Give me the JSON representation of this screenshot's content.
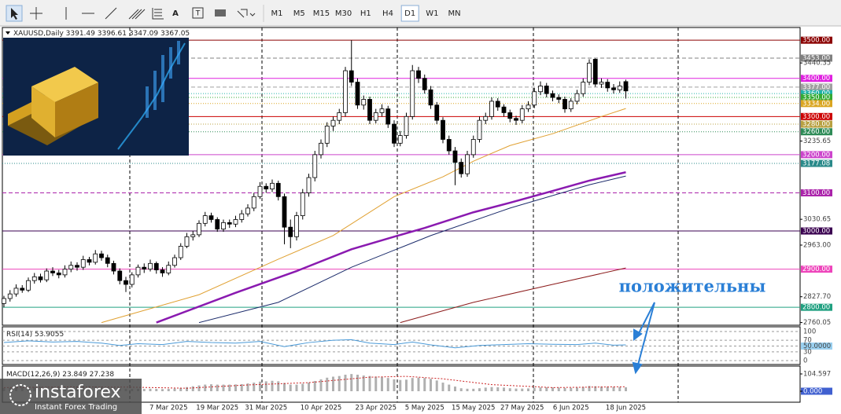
{
  "toolbar": {
    "text_tool": "A",
    "timeframes": [
      "M1",
      "M5",
      "M15",
      "M30",
      "H1",
      "H4",
      "D1",
      "W1",
      "MN"
    ],
    "active": "D1"
  },
  "logo": {
    "name": "instaforex",
    "tagline": "Instant Forex Trading"
  },
  "chart_data": [
    {
      "type": "candlestick",
      "title": "XAUUSD,Daily",
      "up_color": "#ffffff",
      "down_color": "#000000",
      "categories": [
        null,
        null,
        null,
        null,
        null,
        null,
        null,
        null,
        null,
        null,
        null,
        null,
        null,
        null,
        null,
        null,
        null,
        null,
        null,
        null,
        null,
        null,
        null,
        null,
        null,
        null,
        null,
        "7 Mar 2025",
        null,
        null,
        null,
        null,
        null,
        null,
        null,
        "19 Mar 2025",
        null,
        null,
        null,
        null,
        null,
        null,
        null,
        "31 Mar 2025",
        null,
        null,
        null,
        null,
        null,
        null,
        null,
        null,
        "10 Apr 2025",
        null,
        null,
        null,
        null,
        null,
        null,
        null,
        null,
        "23 Apr 2025",
        null,
        null,
        null,
        null,
        null,
        null,
        null,
        "5 May 2025",
        null,
        null,
        null,
        null,
        null,
        null,
        null,
        "15 May 2025",
        null,
        null,
        null,
        null,
        null,
        null,
        null,
        "27 May 2025",
        null,
        null,
        null,
        null,
        null,
        null,
        null,
        "6 Jun 2025",
        null,
        null,
        null,
        null,
        null,
        null,
        null,
        null,
        "18 Jun 2025"
      ],
      "ohlc": [
        [
          2810,
          2830,
          2800,
          2823
        ],
        [
          2823,
          2845,
          2815,
          2835
        ],
        [
          2835,
          2860,
          2828,
          2850
        ],
        [
          2850,
          2858,
          2838,
          2845
        ],
        [
          2845,
          2878,
          2840,
          2870
        ],
        [
          2870,
          2890,
          2862,
          2880
        ],
        [
          2880,
          2888,
          2865,
          2872
        ],
        [
          2872,
          2902,
          2866,
          2895
        ],
        [
          2895,
          2905,
          2882,
          2890
        ],
        [
          2890,
          2898,
          2876,
          2885
        ],
        [
          2885,
          2910,
          2878,
          2900
        ],
        [
          2900,
          2920,
          2892,
          2910
        ],
        [
          2910,
          2918,
          2896,
          2905
        ],
        [
          2905,
          2935,
          2898,
          2925
        ],
        [
          2925,
          2932,
          2910,
          2918
        ],
        [
          2918,
          2950,
          2912,
          2940
        ],
        [
          2940,
          2948,
          2922,
          2930
        ],
        [
          2930,
          2938,
          2905,
          2915
        ],
        [
          2915,
          2922,
          2886,
          2895
        ],
        [
          2895,
          2902,
          2860,
          2870
        ],
        [
          2870,
          2880,
          2840,
          2860
        ],
        [
          2860,
          2892,
          2852,
          2885
        ],
        [
          2885,
          2912,
          2878,
          2905
        ],
        [
          2905,
          2915,
          2890,
          2900
        ],
        [
          2900,
          2925,
          2894,
          2915
        ],
        [
          2915,
          2920,
          2888,
          2898
        ],
        [
          2898,
          2905,
          2880,
          2890
        ],
        [
          2890,
          2920,
          2884,
          2910
        ],
        [
          2910,
          2938,
          2904,
          2930
        ],
        [
          2930,
          2968,
          2924,
          2960
        ],
        [
          2960,
          2995,
          2955,
          2985
        ],
        [
          2985,
          3000,
          2975,
          2990
        ],
        [
          2990,
          3028,
          2984,
          3020
        ],
        [
          3020,
          3050,
          3012,
          3040
        ],
        [
          3040,
          3048,
          3022,
          3030
        ],
        [
          3030,
          3036,
          2998,
          3005
        ],
        [
          3005,
          3030,
          2998,
          3022
        ],
        [
          3022,
          3030,
          3008,
          3018
        ],
        [
          3018,
          3040,
          3010,
          3030
        ],
        [
          3030,
          3055,
          3022,
          3045
        ],
        [
          3045,
          3070,
          3038,
          3060
        ],
        [
          3060,
          3100,
          3052,
          3090
        ],
        [
          3090,
          3128,
          3084,
          3117
        ],
        [
          3117,
          3125,
          3100,
          3110
        ],
        [
          3110,
          3135,
          3102,
          3125
        ],
        [
          3125,
          3132,
          3080,
          3090
        ],
        [
          3090,
          3098,
          2965,
          3010
        ],
        [
          3010,
          3030,
          2955,
          2985
        ],
        [
          2985,
          3050,
          2975,
          3040
        ],
        [
          3040,
          3110,
          3030,
          3100
        ],
        [
          3100,
          3150,
          3090,
          3140
        ],
        [
          3140,
          3210,
          3130,
          3200
        ],
        [
          3200,
          3240,
          3190,
          3230
        ],
        [
          3230,
          3285,
          3220,
          3275
        ],
        [
          3275,
          3300,
          3262,
          3290
        ],
        [
          3290,
          3320,
          3280,
          3310
        ],
        [
          3310,
          3430,
          3300,
          3420
        ],
        [
          3420,
          3500,
          3380,
          3390
        ],
        [
          3390,
          3400,
          3320,
          3330
        ],
        [
          3330,
          3355,
          3318,
          3345
        ],
        [
          3345,
          3352,
          3280,
          3290
        ],
        [
          3290,
          3320,
          3282,
          3310
        ],
        [
          3310,
          3332,
          3300,
          3320
        ],
        [
          3320,
          3328,
          3270,
          3280
        ],
        [
          3280,
          3290,
          3220,
          3230
        ],
        [
          3230,
          3262,
          3222,
          3250
        ],
        [
          3250,
          3310,
          3242,
          3300
        ],
        [
          3300,
          3435,
          3292,
          3420
        ],
        [
          3420,
          3430,
          3388,
          3400
        ],
        [
          3400,
          3410,
          3360,
          3370
        ],
        [
          3370,
          3380,
          3320,
          3330
        ],
        [
          3330,
          3338,
          3280,
          3290
        ],
        [
          3290,
          3298,
          3230,
          3240
        ],
        [
          3240,
          3250,
          3200,
          3210
        ],
        [
          3210,
          3220,
          3120,
          3180
        ],
        [
          3180,
          3190,
          3140,
          3150
        ],
        [
          3150,
          3210,
          3142,
          3200
        ],
        [
          3200,
          3250,
          3192,
          3240
        ],
        [
          3240,
          3300,
          3232,
          3290
        ],
        [
          3290,
          3310,
          3280,
          3300
        ],
        [
          3300,
          3350,
          3292,
          3340
        ],
        [
          3340,
          3348,
          3315,
          3325
        ],
        [
          3325,
          3332,
          3300,
          3310
        ],
        [
          3310,
          3318,
          3285,
          3295
        ],
        [
          3295,
          3302,
          3278,
          3290
        ],
        [
          3290,
          3330,
          3282,
          3320
        ],
        [
          3320,
          3340,
          3312,
          3330
        ],
        [
          3330,
          3375,
          3322,
          3365
        ],
        [
          3365,
          3392,
          3356,
          3380
        ],
        [
          3380,
          3388,
          3350,
          3360
        ],
        [
          3360,
          3368,
          3340,
          3350
        ],
        [
          3350,
          3358,
          3335,
          3345
        ],
        [
          3345,
          3352,
          3310,
          3320
        ],
        [
          3320,
          3348,
          3312,
          3340
        ],
        [
          3340,
          3370,
          3332,
          3360
        ],
        [
          3360,
          3400,
          3352,
          3390
        ],
        [
          3390,
          3450,
          3382,
          3440
        ],
        [
          3450,
          3452,
          3378,
          3385
        ],
        [
          3385,
          3400,
          3375,
          3390
        ],
        [
          3390,
          3398,
          3365,
          3375
        ],
        [
          3375,
          3385,
          3360,
          3370
        ],
        [
          3370,
          3392,
          3362,
          3380
        ],
        [
          3391.49,
          3396.61,
          3347.09,
          3367.05
        ]
      ],
      "series": [
        {
          "color": "#e0a030",
          "x": [
            16,
            32,
            45,
            54,
            64,
            72,
            77,
            83,
            90,
            98,
            102
          ],
          "values": [
            2760,
            2833,
            2926,
            2988,
            3090,
            3142,
            3183,
            3224,
            3255,
            3300,
            3321
          ]
        },
        {
          "color": "#8a1ab0",
          "x": [
            25,
            38,
            48,
            57,
            64,
            69,
            77,
            83,
            90,
            96,
            102
          ],
          "values": [
            2760,
            2838,
            2895,
            2952,
            2985,
            3008,
            3049,
            3074,
            3105,
            3132,
            3154
          ]
        },
        {
          "color": "#1a2a6a",
          "x": [
            32,
            45,
            57,
            70,
            83,
            96,
            102
          ],
          "values": [
            2760,
            2813,
            2905,
            2988,
            3060,
            3121,
            3144
          ]
        },
        {
          "color": "#8b1a1a",
          "x": [
            65,
            77,
            90,
            102
          ],
          "values": [
            2760,
            2813,
            2860,
            2903
          ]
        }
      ],
      "ylim": [
        2753,
        3523
      ],
      "yticks": [
        3440.35,
        3235.65,
        3030.65,
        {
          "value": 2963,
          "label": "2963.00"
        },
        {
          "value": 2827.7,
          "label": "2827.70"
        },
        2760.05
      ],
      "levels": [
        {
          "value": 3500,
          "label": "3500.00",
          "color": "#8b0000",
          "style": "solid"
        },
        {
          "value": 3453,
          "label": "3453.00",
          "color": "#808080",
          "style": "dashed"
        },
        {
          "value": 3400,
          "label": "3400.00",
          "color": "#e020e0",
          "style": "solid"
        },
        {
          "value": 3377,
          "label": "3377.00",
          "color": "#a0a0a0",
          "style": "dashed"
        },
        {
          "value": 3360,
          "label": "3360.00",
          "color": "#20b2aa",
          "style": "dotted"
        },
        {
          "value": 3350,
          "label": "3350.00",
          "color": "#33aa33",
          "style": "dotted"
        },
        {
          "value": 3334,
          "label": "3334.00",
          "color": "#daa520",
          "style": "dotted"
        },
        {
          "value": 3300,
          "label": "3300.00",
          "color": "#cc0000",
          "style": "solid"
        },
        {
          "value": 3280,
          "label": "3280.00",
          "color": "#b8a040",
          "style": "dotted"
        },
        {
          "value": 3260,
          "label": "3260.00",
          "color": "#2e8b57",
          "style": "dotted"
        },
        {
          "value": 3200,
          "label": "3200.00",
          "color": "#cc44cc",
          "style": "solid"
        },
        {
          "value": 3177.08,
          "label": "3177.08",
          "color": "#2a8a8a",
          "style": "dotted"
        },
        {
          "value": 3100,
          "label": "3100.00",
          "color": "#aa22aa",
          "style": "dashed"
        },
        {
          "value": 3000,
          "label": "3000.00",
          "color": "#3a0050",
          "style": "solid"
        },
        {
          "value": 2900,
          "label": "2900.00",
          "color": "#ee44bb",
          "style": "solid"
        },
        {
          "value": 2800,
          "label": "2800.00",
          "color": "#20a080",
          "style": "solid"
        }
      ],
      "annotation": "положительны"
    },
    {
      "type": "line",
      "title": "RSI(14)",
      "color": "#4a9ad8",
      "x": [
        0,
        4,
        8,
        12,
        16,
        19,
        22,
        26,
        30,
        34,
        38,
        42,
        46,
        50,
        54,
        57,
        60,
        64,
        67,
        70,
        74,
        78,
        82,
        86,
        90,
        94,
        97,
        100,
        102
      ],
      "values": [
        62,
        68,
        64,
        66,
        60,
        52,
        58,
        55,
        66,
        62,
        60,
        66,
        48,
        62,
        70,
        72,
        60,
        55,
        64,
        54,
        44,
        52,
        55,
        58,
        56,
        55,
        60,
        53,
        53.9055
      ],
      "ylim": [
        0,
        100
      ],
      "yticks": [
        100,
        70,
        {
          "value": 50,
          "label": "50.0000"
        },
        30,
        0
      ],
      "grid": true
    },
    {
      "type": "macd",
      "title": "MACD(12,26,9)",
      "color": "#b0b0b0",
      "signal_color": "#cc2222",
      "values": [
        20,
        21,
        22,
        24,
        25,
        26,
        27,
        27,
        28,
        28,
        29,
        30,
        30,
        31,
        31,
        30,
        28,
        25,
        22,
        18,
        15,
        14,
        14,
        14,
        15,
        14,
        13,
        14,
        16,
        20,
        25,
        30,
        35,
        40,
        42,
        40,
        40,
        40,
        41,
        43,
        47,
        52,
        58,
        60,
        63,
        60,
        50,
        40,
        40,
        45,
        52,
        62,
        72,
        82,
        88,
        92,
        100,
        104,
        100,
        95,
        92,
        88,
        85,
        80,
        72,
        68,
        70,
        80,
        82,
        80,
        75,
        65,
        52,
        40,
        28,
        18,
        15,
        15,
        18,
        22,
        25,
        24,
        22,
        18,
        16,
        16,
        17,
        20,
        23,
        24,
        23,
        22,
        20,
        20,
        22,
        26,
        32,
        30,
        28,
        27,
        26,
        25,
        23.849
      ],
      "signal_x": [
        0,
        10,
        20,
        30,
        40,
        50,
        60,
        66,
        72,
        80,
        90,
        102
      ],
      "signal": [
        22,
        26,
        25,
        18,
        38,
        52,
        85,
        90,
        75,
        40,
        22,
        27.238
      ],
      "ylim": [
        0,
        104.597
      ],
      "yticks": [
        104.597,
        {
          "value": 0,
          "label": "0.000"
        }
      ]
    }
  ]
}
